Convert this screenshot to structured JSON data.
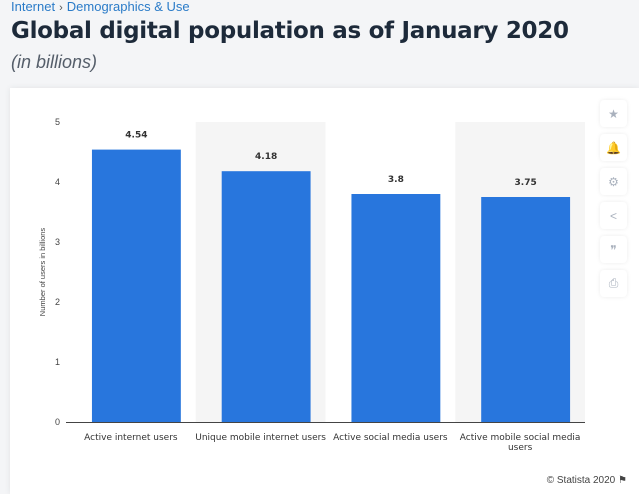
{
  "breadcrumb": {
    "items": [
      "Internet",
      "Demographics & Use"
    ],
    "separator": "›"
  },
  "title": "Global digital population as of January 2020",
  "subtitle": "(in billions)",
  "toolbar": [
    {
      "icon": "star-icon",
      "glyph": "★"
    },
    {
      "icon": "bell-icon",
      "glyph": "🔔"
    },
    {
      "icon": "gear-icon",
      "glyph": "⚙"
    },
    {
      "icon": "share-icon",
      "glyph": "<"
    },
    {
      "icon": "quote-icon",
      "glyph": "❞"
    },
    {
      "icon": "print-icon",
      "glyph": "⎙"
    }
  ],
  "credit": "© Statista 2020",
  "chart_data": {
    "type": "bar",
    "categories": [
      "Active internet users",
      "Unique mobile internet users",
      "Active social media users",
      "Active mobile social media users"
    ],
    "values": [
      4.54,
      4.18,
      3.8,
      3.75
    ],
    "data_labels": [
      "4.54",
      "4.18",
      "3.8",
      "3.75"
    ],
    "ylabel": "Number of users in billions",
    "ylim": [
      0,
      5
    ],
    "yticks": [
      "0",
      "1",
      "2",
      "3",
      "4",
      "5"
    ],
    "bar_color": "#2876dd",
    "grid": false,
    "alternating_band_color": "#f5f5f5"
  }
}
